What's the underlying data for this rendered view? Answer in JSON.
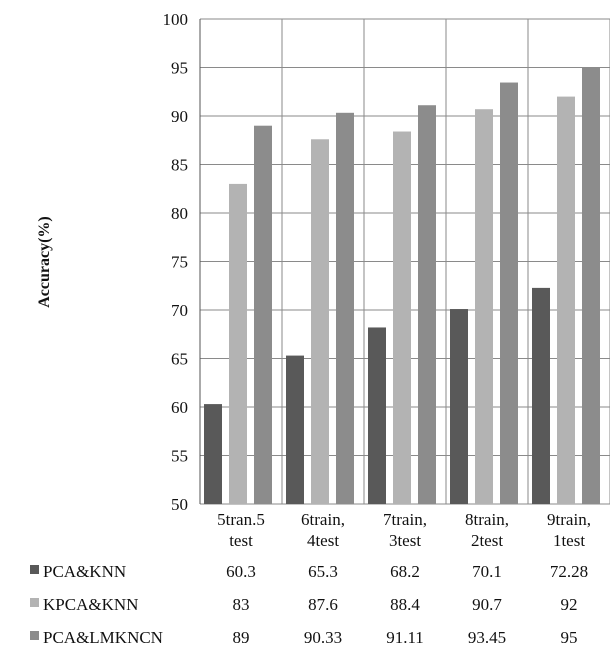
{
  "chart_data": {
    "type": "bar",
    "title": "",
    "xlabel": "",
    "ylabel": "Accuracy(%)",
    "ylim": [
      50,
      100
    ],
    "yticks": [
      50,
      55,
      60,
      65,
      70,
      75,
      80,
      85,
      90,
      95,
      100
    ],
    "grid": true,
    "legend": "data-table-below",
    "categories": [
      [
        "5tran.5",
        "test"
      ],
      [
        "6train,",
        "4test"
      ],
      [
        "7train,",
        "3test"
      ],
      [
        "8train,",
        "2test"
      ],
      [
        "9train,",
        "1test"
      ]
    ],
    "series": [
      {
        "name": "PCA&KNN",
        "color": "#595959",
        "values": [
          60.3,
          65.3,
          68.2,
          70.1,
          72.28
        ]
      },
      {
        "name": "KPCA&KNN",
        "color": "#b3b3b3",
        "values": [
          83,
          87.6,
          88.4,
          90.7,
          92
        ]
      },
      {
        "name": "PCA&LMKNCN",
        "color": "#8c8c8c",
        "values": [
          89,
          90.33,
          91.11,
          93.45,
          95
        ]
      }
    ]
  }
}
